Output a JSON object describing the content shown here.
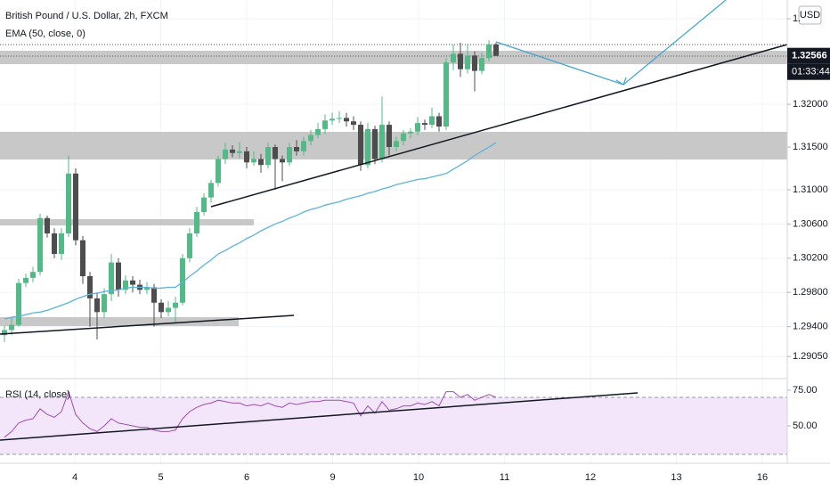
{
  "chart_data": {
    "type": "candlestick",
    "title": "British Pound / U.S. Dollar, 2h, FXCM",
    "currency": "USD",
    "ylim": [
      1.28792,
      1.33219
    ],
    "yticks": [
      {
        "value": 1.33,
        "label": "1."
      },
      {
        "value": 1.32,
        "label": "1.32000"
      },
      {
        "value": 1.315,
        "label": "1.31500"
      },
      {
        "value": 1.31,
        "label": "1.31000"
      },
      {
        "value": 1.306,
        "label": "1.30600"
      },
      {
        "value": 1.302,
        "label": "1.30200"
      },
      {
        "value": 1.298,
        "label": "1.29800"
      },
      {
        "value": 1.294,
        "label": "1.29400"
      },
      {
        "value": 1.2905,
        "label": "1.29050"
      }
    ],
    "x_labels": [
      "4",
      "5",
      "6",
      "9",
      "10",
      "11",
      "12",
      "13",
      "16"
    ],
    "up_color": "#53b987",
    "down_color": "#4d4d4d",
    "grid": true,
    "candles": [
      [
        1.293,
        1.2941,
        1.2922,
        1.2936
      ],
      [
        1.2936,
        1.295,
        1.293,
        1.2942
      ],
      [
        1.2942,
        1.2996,
        1.294,
        1.2991
      ],
      [
        1.2991,
        1.3002,
        1.2986,
        1.2997
      ],
      [
        1.2997,
        1.301,
        1.2992,
        1.3004
      ],
      [
        1.3004,
        1.3072,
        1.3,
        1.3067
      ],
      [
        1.3067,
        1.307,
        1.3044,
        1.3049
      ],
      [
        1.3049,
        1.3055,
        1.302,
        1.3025
      ],
      [
        1.3025,
        1.3055,
        1.3018,
        1.3049
      ],
      [
        1.3049,
        1.314,
        1.3045,
        1.3119
      ],
      [
        1.3119,
        1.3125,
        1.3035,
        1.3041
      ],
      [
        1.3041,
        1.3046,
        1.299,
        1.2999
      ],
      [
        1.2999,
        1.3004,
        1.294,
        1.2973
      ],
      [
        1.2973,
        1.298,
        1.2925,
        1.2957
      ],
      [
        1.2957,
        1.2985,
        1.295,
        1.2978
      ],
      [
        1.2978,
        1.3025,
        1.297,
        1.3015
      ],
      [
        1.3015,
        1.302,
        1.2975,
        1.2983
      ],
      [
        1.2983,
        1.3,
        1.2978,
        1.2994
      ],
      [
        1.2994,
        1.2999,
        1.298,
        1.2989
      ],
      [
        1.2989,
        1.2995,
        1.2978,
        1.2983
      ],
      [
        1.2983,
        1.2992,
        1.2978,
        1.2986
      ],
      [
        1.2986,
        1.299,
        1.294,
        1.2968
      ],
      [
        1.2968,
        1.2972,
        1.295,
        1.2957
      ],
      [
        1.2957,
        1.297,
        1.2952,
        1.2962
      ],
      [
        1.2962,
        1.2975,
        1.2945,
        1.2968
      ],
      [
        1.2968,
        1.3025,
        1.2965,
        1.302
      ],
      [
        1.302,
        1.3055,
        1.3015,
        1.3049
      ],
      [
        1.3049,
        1.308,
        1.3045,
        1.3074
      ],
      [
        1.3074,
        1.3096,
        1.307,
        1.3091
      ],
      [
        1.3091,
        1.3112,
        1.3085,
        1.3108
      ],
      [
        1.3108,
        1.314,
        1.3104,
        1.3136
      ],
      [
        1.3136,
        1.3155,
        1.313,
        1.3147
      ],
      [
        1.3147,
        1.3152,
        1.3138,
        1.3143
      ],
      [
        1.3143,
        1.3156,
        1.3137,
        1.3145
      ],
      [
        1.3145,
        1.315,
        1.3125,
        1.3132
      ],
      [
        1.3132,
        1.3145,
        1.3128,
        1.3136
      ],
      [
        1.3136,
        1.3142,
        1.312,
        1.3129
      ],
      [
        1.3129,
        1.3155,
        1.3125,
        1.315
      ],
      [
        1.315,
        1.3153,
        1.31,
        1.3136
      ],
      [
        1.3136,
        1.314,
        1.311,
        1.3132
      ],
      [
        1.3132,
        1.3155,
        1.3128,
        1.315
      ],
      [
        1.315,
        1.3158,
        1.314,
        1.3145
      ],
      [
        1.3145,
        1.3162,
        1.314,
        1.3157
      ],
      [
        1.3157,
        1.317,
        1.3152,
        1.3164
      ],
      [
        1.3164,
        1.3178,
        1.316,
        1.3171
      ],
      [
        1.3171,
        1.3188,
        1.3165,
        1.3181
      ],
      [
        1.3181,
        1.319,
        1.3176,
        1.3183
      ],
      [
        1.3183,
        1.3192,
        1.3178,
        1.3184
      ],
      [
        1.3184,
        1.319,
        1.3174,
        1.318
      ],
      [
        1.318,
        1.3186,
        1.317,
        1.3176
      ],
      [
        1.3176,
        1.318,
        1.3122,
        1.3129
      ],
      [
        1.3129,
        1.3178,
        1.3125,
        1.3171
      ],
      [
        1.3171,
        1.3175,
        1.313,
        1.3136
      ],
      [
        1.3136,
        1.3209,
        1.3132,
        1.3176
      ],
      [
        1.3176,
        1.318,
        1.314,
        1.315
      ],
      [
        1.315,
        1.3162,
        1.3145,
        1.3157
      ],
      [
        1.3157,
        1.317,
        1.3152,
        1.3166
      ],
      [
        1.3166,
        1.3172,
        1.316,
        1.3168
      ],
      [
        1.3168,
        1.3185,
        1.3164,
        1.3178
      ],
      [
        1.3178,
        1.3182,
        1.317,
        1.3176
      ],
      [
        1.3176,
        1.3196,
        1.3172,
        1.3186
      ],
      [
        1.3186,
        1.319,
        1.3168,
        1.3174
      ],
      [
        1.3174,
        1.3254,
        1.317,
        1.3249
      ],
      [
        1.3249,
        1.327,
        1.324,
        1.3259
      ],
      [
        1.3259,
        1.3272,
        1.3232,
        1.3241
      ],
      [
        1.3241,
        1.327,
        1.3236,
        1.3257
      ],
      [
        1.3257,
        1.3262,
        1.3215,
        1.3239
      ],
      [
        1.3239,
        1.326,
        1.3235,
        1.3254
      ],
      [
        1.3254,
        1.3275,
        1.325,
        1.327
      ],
      [
        1.327,
        1.3272,
        1.32566,
        1.32566
      ]
    ],
    "ema": {
      "name": "EMA (50, close, 0)",
      "color": "#5cb3d9",
      "values": [
        1.2949,
        1.2951,
        1.2952,
        1.2954,
        1.2956,
        1.2957,
        1.2959,
        1.2962,
        1.2965,
        1.2968,
        1.2972,
        1.2975,
        1.2978,
        1.2979,
        1.2981,
        1.2982,
        1.2983,
        1.2985,
        1.2986,
        1.2986,
        1.2986,
        1.2985,
        1.2985,
        1.2986,
        1.2986,
        1.2992,
        1.2999,
        1.3005,
        1.3012,
        1.3018,
        1.3025,
        1.3029,
        1.3034,
        1.3038,
        1.3043,
        1.3047,
        1.3052,
        1.3056,
        1.306,
        1.3063,
        1.3067,
        1.307,
        1.3074,
        1.3077,
        1.3079,
        1.3082,
        1.3084,
        1.3086,
        1.3089,
        1.3091,
        1.3093,
        1.3096,
        1.3098,
        1.3101,
        1.3103,
        1.3106,
        1.3108,
        1.311,
        1.3112,
        1.3113,
        1.3115,
        1.3117,
        1.3119,
        1.3124,
        1.3129,
        1.3134,
        1.314,
        1.3145,
        1.315,
        1.3155
      ]
    },
    "last_price": 1.32566,
    "countdown": "01:33:44",
    "rsi": {
      "name": "RSI (14, close)",
      "color": "#9c4fb0",
      "ylim": [
        23.75,
        81.25
      ],
      "yticks": [
        {
          "value": 75,
          "label": "75.00"
        },
        {
          "value": 50,
          "label": "50.00"
        }
      ],
      "bands": [
        30,
        70
      ],
      "values": [
        42,
        46,
        52,
        54,
        55,
        62,
        58,
        56,
        60,
        74,
        58,
        52,
        48,
        46,
        50,
        55,
        52,
        51,
        50,
        49,
        49,
        47,
        46,
        46,
        47,
        55,
        60,
        63,
        65,
        66,
        68,
        67,
        66,
        66,
        64,
        65,
        64,
        66,
        64,
        63,
        66,
        65,
        66,
        67,
        67,
        68,
        68,
        68,
        67,
        66,
        57,
        64,
        59,
        67,
        61,
        62,
        64,
        64,
        66,
        65,
        67,
        64,
        74,
        74,
        70,
        72,
        68,
        70,
        72,
        70
      ]
    }
  }
}
